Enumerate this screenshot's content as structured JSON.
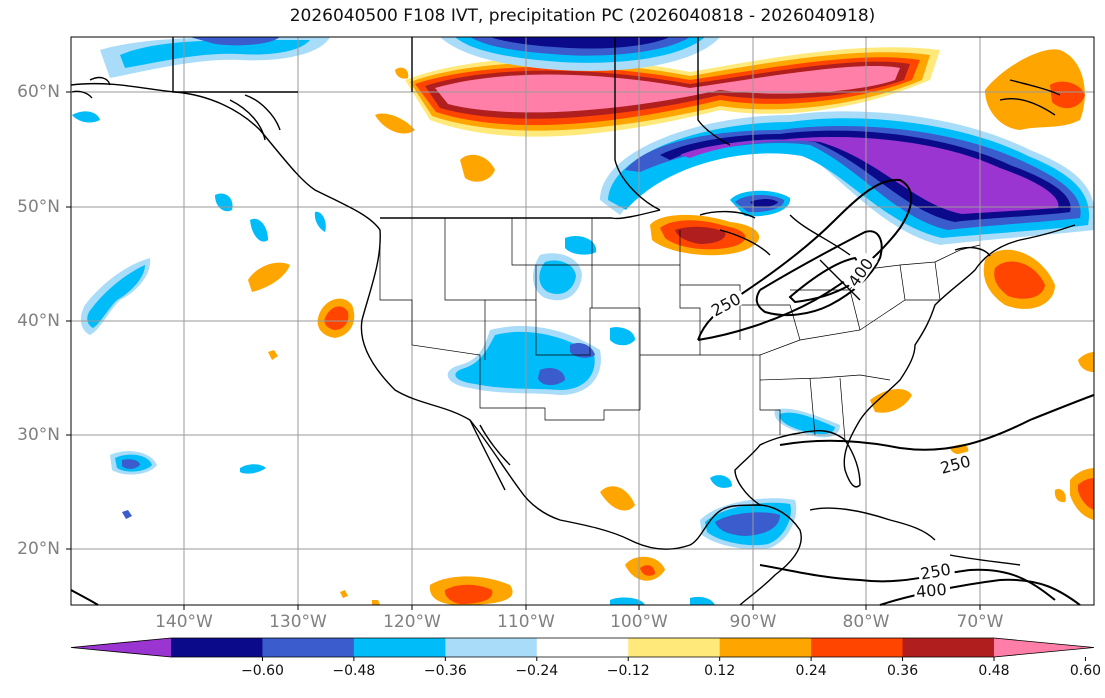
{
  "title": "2026040500 F108 IVT, precipitation PC (2026040818 - 2026040918)",
  "lat_labels": [
    "60°N",
    "50°N",
    "40°N",
    "30°N",
    "20°N"
  ],
  "lon_labels": [
    "140°W",
    "130°W",
    "120°W",
    "110°W",
    "100°W",
    "90°W",
    "80°W",
    "70°W"
  ],
  "contour_labels": [
    "250",
    "400",
    "250",
    "250",
    "400"
  ],
  "colorbar": {
    "colors": [
      "#9b35d2",
      "#0a0a8a",
      "#3a5ccc",
      "#00bcf8",
      "#a8dcf8",
      "#ffffff",
      "#ffe97a",
      "#ffa500",
      "#ff4500",
      "#b01e1e",
      "#ff7fa8"
    ],
    "ticks": [
      "−0.60",
      "−0.48",
      "−0.36",
      "−0.24",
      "−0.12",
      "0.12",
      "0.24",
      "0.36",
      "0.48",
      "0.60"
    ]
  }
}
